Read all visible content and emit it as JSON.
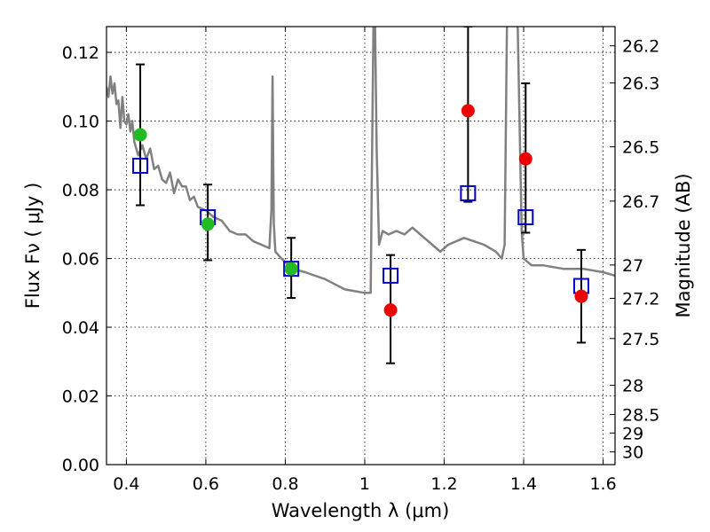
{
  "chart_data": {
    "type": "scatter",
    "title": "",
    "xlabel": "Wavelength  λ (μm)",
    "ylabel": "Flux  Fν  ( μJy )",
    "ylabel_right": "Magnitude (AB)",
    "xlim": [
      0.35,
      1.63
    ],
    "ylim": [
      0.0,
      0.1275
    ],
    "grid": true,
    "x_ticks": [
      0.4,
      0.6,
      0.8,
      1.0,
      1.2,
      1.4,
      1.6
    ],
    "x_tick_labels": [
      "0.4",
      "0.6",
      "0.8",
      "1",
      "1.2",
      "1.4",
      "1.6"
    ],
    "y_ticks": [
      0.0,
      0.02,
      0.04,
      0.06,
      0.08,
      0.1,
      0.12
    ],
    "y_tick_labels": [
      "0.00",
      "0.02",
      "0.04",
      "0.06",
      "0.08",
      "0.10",
      "0.12"
    ],
    "right_ticks": [
      {
        "label": "26.2",
        "flux": 0.1219
      },
      {
        "label": "26.3",
        "flux": 0.1111
      },
      {
        "label": "26.5",
        "flux": 0.0925
      },
      {
        "label": "26.7",
        "flux": 0.0767
      },
      {
        "label": "27",
        "flux": 0.0581
      },
      {
        "label": "27.2",
        "flux": 0.0484
      },
      {
        "label": "27.5",
        "flux": 0.0367
      },
      {
        "label": "28",
        "flux": 0.0231
      },
      {
        "label": "28.5",
        "flux": 0.0146
      },
      {
        "label": "29",
        "flux": 0.0092
      },
      {
        "label": "30",
        "flux": 0.0037
      }
    ],
    "series": [
      {
        "kind": "model-spectrum",
        "color": "#808080",
        "x": [
          0.35,
          0.355,
          0.36,
          0.365,
          0.37,
          0.375,
          0.38,
          0.385,
          0.39,
          0.395,
          0.4,
          0.405,
          0.41,
          0.415,
          0.42,
          0.43,
          0.44,
          0.45,
          0.46,
          0.47,
          0.48,
          0.49,
          0.5,
          0.51,
          0.52,
          0.53,
          0.54,
          0.55,
          0.56,
          0.57,
          0.58,
          0.6,
          0.62,
          0.64,
          0.66,
          0.68,
          0.7,
          0.72,
          0.74,
          0.76,
          0.765,
          0.768,
          0.771,
          0.775,
          0.79,
          0.8,
          0.82,
          0.85,
          0.9,
          0.95,
          1.0,
          1.015,
          1.018,
          1.022,
          1.026,
          1.03,
          1.036,
          1.045,
          1.06,
          1.08,
          1.1,
          1.12,
          1.15,
          1.17,
          1.19,
          1.21,
          1.25,
          1.3,
          1.33,
          1.345,
          1.352,
          1.358,
          1.365,
          1.375,
          1.385,
          1.395,
          1.4,
          1.42,
          1.45,
          1.5,
          1.55,
          1.6,
          1.63
        ],
        "y": [
          0.11,
          0.107,
          0.113,
          0.108,
          0.111,
          0.105,
          0.106,
          0.098,
          0.107,
          0.1,
          0.099,
          0.102,
          0.097,
          0.1,
          0.094,
          0.09,
          0.093,
          0.089,
          0.092,
          0.086,
          0.087,
          0.083,
          0.082,
          0.085,
          0.079,
          0.083,
          0.081,
          0.081,
          0.077,
          0.078,
          0.075,
          0.074,
          0.072,
          0.071,
          0.068,
          0.067,
          0.067,
          0.065,
          0.064,
          0.063,
          0.074,
          0.113,
          0.07,
          0.062,
          0.06,
          0.059,
          0.057,
          0.056,
          0.054,
          0.051,
          0.05,
          0.05,
          0.085,
          0.128,
          0.128,
          0.092,
          0.064,
          0.068,
          0.067,
          0.068,
          0.067,
          0.069,
          0.066,
          0.064,
          0.062,
          0.064,
          0.066,
          0.064,
          0.062,
          0.06,
          0.064,
          0.128,
          0.128,
          0.128,
          0.128,
          0.068,
          0.06,
          0.058,
          0.058,
          0.057,
          0.057,
          0.056,
          0.055
        ]
      },
      {
        "kind": "model-box",
        "marker": "square",
        "color": "#0000cc",
        "x": [
          0.435,
          0.605,
          0.815,
          1.065,
          1.26,
          1.405,
          1.545
        ],
        "y": [
          0.087,
          0.072,
          0.057,
          0.055,
          0.079,
          0.072,
          0.052
        ]
      },
      {
        "kind": "observed-green",
        "marker": "circle",
        "color": "#22bb22",
        "x": [
          0.435,
          0.605,
          0.815
        ],
        "y": [
          0.096,
          0.07,
          0.057
        ]
      },
      {
        "kind": "observed-red",
        "marker": "circle",
        "color": "#ee0000",
        "x": [
          1.065,
          1.26,
          1.405,
          1.545
        ],
        "y": [
          0.045,
          0.103,
          0.089,
          0.049
        ]
      }
    ],
    "error_bars": [
      {
        "x": 0.435,
        "low": 0.0755,
        "high": 0.1165
      },
      {
        "x": 0.605,
        "low": 0.0595,
        "high": 0.0815
      },
      {
        "x": 0.815,
        "low": 0.0485,
        "high": 0.066
      },
      {
        "x": 1.065,
        "low": 0.0295,
        "high": 0.061
      },
      {
        "x": 1.26,
        "low": 0.0765,
        "high": 0.1275
      },
      {
        "x": 1.405,
        "low": 0.0675,
        "high": 0.111
      },
      {
        "x": 1.545,
        "low": 0.0355,
        "high": 0.0625
      }
    ]
  }
}
